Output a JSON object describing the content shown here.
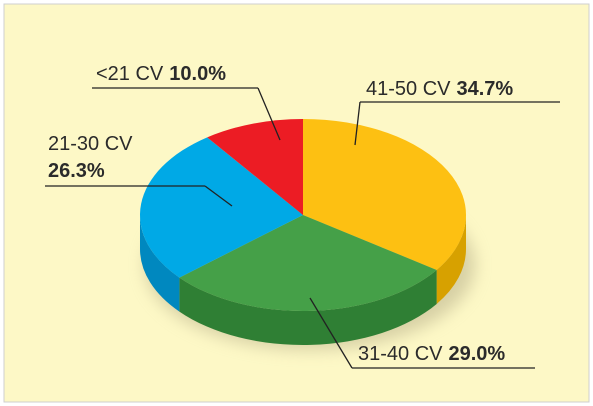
{
  "chart_data": {
    "type": "pie",
    "categories": [
      "41-50 CV",
      "31-40 CV",
      "21-30 CV",
      "<21 CV"
    ],
    "values": [
      34.7,
      29.0,
      26.3,
      10.0
    ],
    "value_labels": [
      "34.7%",
      "29.0%",
      "26.3%",
      "10.0%"
    ],
    "colors": [
      "#fdc012",
      "#45a048",
      "#00a9e6",
      "#ec1c24"
    ],
    "side_colors": [
      "#d7a100",
      "#2f7f34",
      "#0088bf",
      "#b3131a"
    ]
  }
}
